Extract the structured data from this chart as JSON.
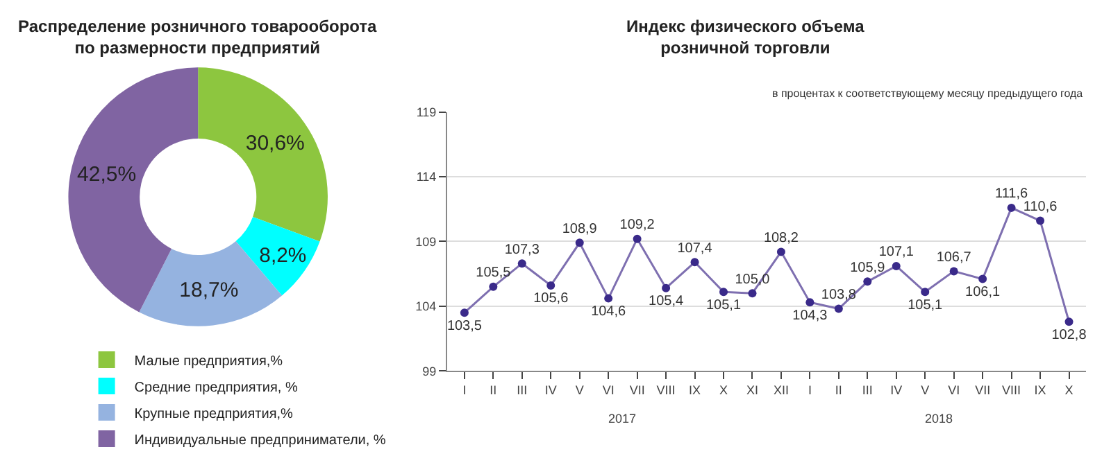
{
  "chart_data": [
    {
      "type": "donut",
      "title": "Распределение розничного товарооборота\nпо размерности предприятий",
      "categories": [
        "Малые предприятия,%",
        "Средние предприятия, %",
        "Крупные предприятия,%",
        "Индивидуальные предприниматели, %"
      ],
      "values": [
        30.6,
        8.2,
        18.7,
        42.5
      ],
      "colors": [
        "#8dc63f",
        "#00ffff",
        "#95b3e0",
        "#8064a2"
      ],
      "value_labels": [
        "30,6%",
        "8,2%",
        "18,7%",
        "42,5%"
      ],
      "legend": "bottom"
    },
    {
      "type": "line",
      "title": "Индекс физического объема\nрозничной торговли",
      "subtitle": "в процентах к соответствующему месяцу предыдущего года",
      "categories": [
        "I",
        "II",
        "III",
        "IV",
        "V",
        "VI",
        "VII",
        "VIII",
        "IX",
        "X",
        "XI",
        "XII",
        "I",
        "II",
        "III",
        "IV",
        "V",
        "VI",
        "VII",
        "VIII",
        "IX",
        "X"
      ],
      "series": [
        {
          "color": "#7e6fb0",
          "values": [
            103.5,
            105.5,
            107.3,
            105.6,
            108.9,
            104.6,
            109.2,
            105.4,
            107.4,
            105.1,
            105.0,
            108.2,
            104.3,
            103.8,
            105.9,
            107.1,
            105.1,
            106.7,
            106.1,
            111.6,
            110.6,
            102.8
          ]
        }
      ],
      "value_labels": [
        "103,5",
        "105,5",
        "107,3",
        "105,6",
        "108,9",
        "104,6",
        "109,2",
        "105,4",
        "107,4",
        "105,1",
        "105,0",
        "108,2",
        "104,3",
        "103,8",
        "105,9",
        "107,1",
        "105,1",
        "106,7",
        "106,1",
        "111,6",
        "110,6",
        "102,8"
      ],
      "ylim": [
        99,
        119
      ],
      "yticks": [
        99,
        104,
        109,
        114,
        119
      ],
      "grid": "y",
      "marker": "circle",
      "line_style": "solid",
      "annotations": [
        "2017",
        "2018"
      ]
    }
  ]
}
